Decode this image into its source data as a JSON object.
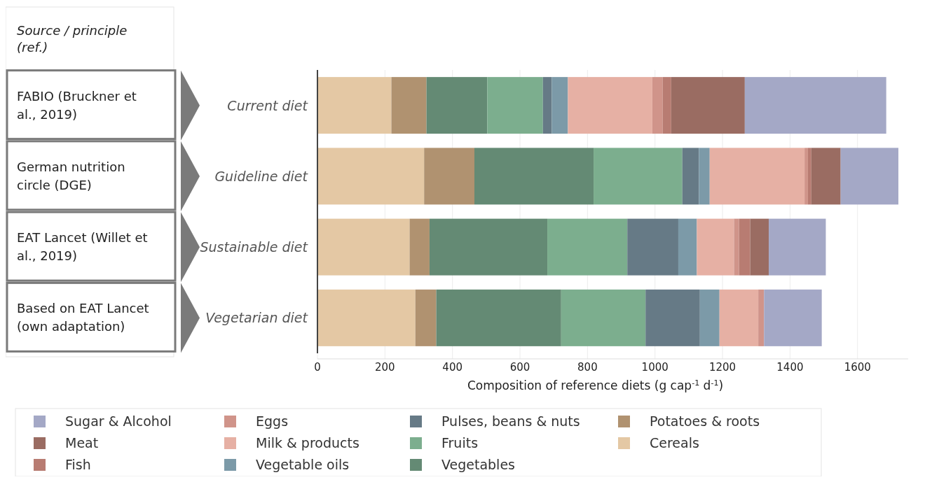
{
  "chart_data": {
    "type": "bar",
    "orientation": "horizontal",
    "stacked": true,
    "categories": [
      "Current diet",
      "Guideline diet",
      "Sustainable diet",
      "Vegetarian diet"
    ],
    "series": [
      {
        "name": "Cereals",
        "color": "#e4c8a4",
        "values": [
          219,
          316,
          273,
          290
        ]
      },
      {
        "name": "Potatoes & roots",
        "color": "#b09270",
        "values": [
          104,
          149,
          59,
          62
        ]
      },
      {
        "name": "Vegetables",
        "color": "#648a74",
        "values": [
          180,
          353,
          349,
          370
        ]
      },
      {
        "name": "Fruits",
        "color": "#7cae8e",
        "values": [
          165,
          263,
          237,
          250
        ]
      },
      {
        "name": "Pulses, beans & nuts",
        "color": "#667a86",
        "values": [
          26,
          49,
          151,
          161
        ]
      },
      {
        "name": "Vegetable oils",
        "color": "#7c9aa8",
        "values": [
          48,
          32,
          55,
          58
        ]
      },
      {
        "name": "Milk & products",
        "color": "#e6b0a4",
        "values": [
          250,
          281,
          110,
          115
        ]
      },
      {
        "name": "Eggs",
        "color": "#d0948a",
        "values": [
          31,
          10,
          15,
          17
        ]
      },
      {
        "name": "Fish",
        "color": "#b87c72",
        "values": [
          25,
          10,
          33,
          0
        ]
      },
      {
        "name": "Meat",
        "color": "#9a6c62",
        "values": [
          218,
          87,
          55,
          0
        ]
      },
      {
        "name": "Sugar & Alcohol",
        "color": "#a4a8c6",
        "values": [
          419,
          171,
          169,
          171
        ]
      }
    ],
    "xlim": [
      0,
      1750
    ],
    "xticks": [
      0,
      200,
      400,
      600,
      800,
      1000,
      1200,
      1400,
      1600
    ],
    "xlabel": "Composition of reference diets (g cap$^{-1}$ d$^{-1}$)",
    "grid": "x",
    "legend": "bottom",
    "annotations": [
      "Source / principle (ref.)",
      "FABIO (Bruckner et al., 2019)",
      "German nutrition circle (DGE)",
      "EAT Lancet (Willet et al., 2019)",
      "Based on EAT Lancet (own adaptation)"
    ]
  }
}
